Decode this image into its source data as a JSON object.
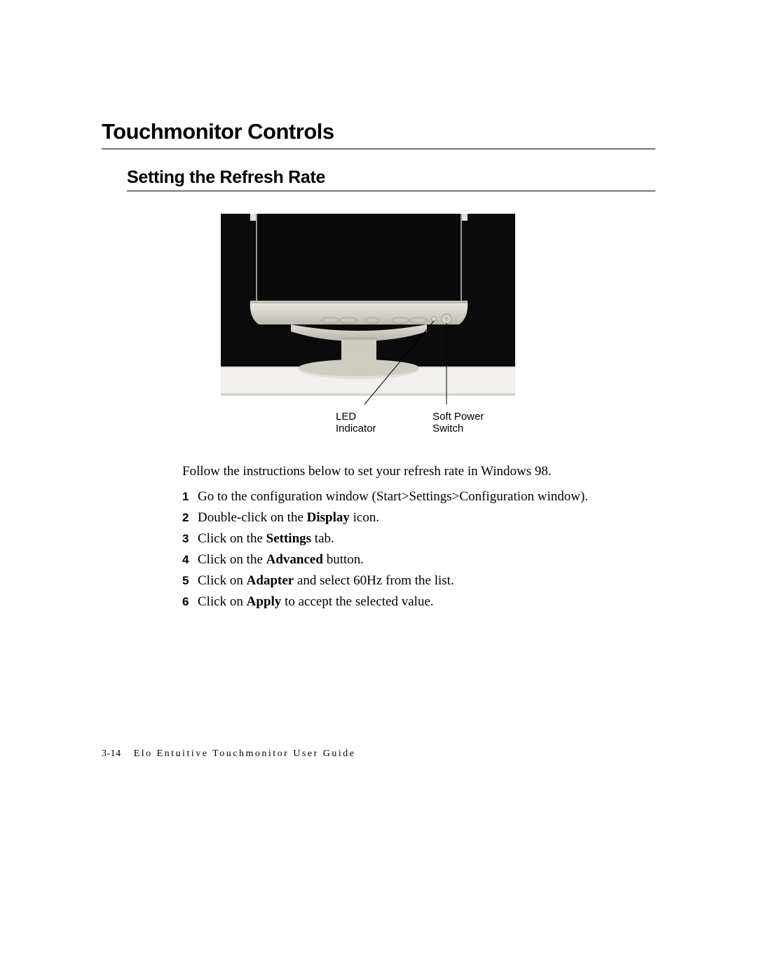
{
  "title": "Touchmonitor Controls",
  "subtitle": "Setting the Refresh Rate",
  "figure": {
    "label_led": "LED Indicator",
    "label_power": "Soft Power Switch",
    "colors": {
      "outer_bg": "#0b0b0b",
      "desk": "#f1f0ee",
      "desk_edge": "#d9d7d2",
      "bezel_light": "#e4e2dc",
      "bezel_mid": "#cfccc4",
      "bezel_dark": "#a7a49a",
      "screen": "#0a0a0a",
      "button": "#c9c6be",
      "button_shadow": "#9a978e"
    }
  },
  "intro": "Follow the instructions below to set your refresh rate in Windows 98.",
  "steps": [
    {
      "n": "1",
      "html": "Go to the configuration window (Start>Settings>Configuration window)."
    },
    {
      "n": "2",
      "html": "Double-click on the <b>Display</b> icon."
    },
    {
      "n": "3",
      "html": "Click on the <b>Settings</b> tab."
    },
    {
      "n": "4",
      "html": "Click on the <b>Advanced</b> button."
    },
    {
      "n": "5",
      "html": "Click on <b>Adapter</b> and select 60Hz from the list."
    },
    {
      "n": "6",
      "html": "Click on <b>Apply</b> to accept the selected value."
    }
  ],
  "footer": {
    "page": "3-14",
    "title": "Elo Entuitive Touchmonitor User Guide"
  }
}
